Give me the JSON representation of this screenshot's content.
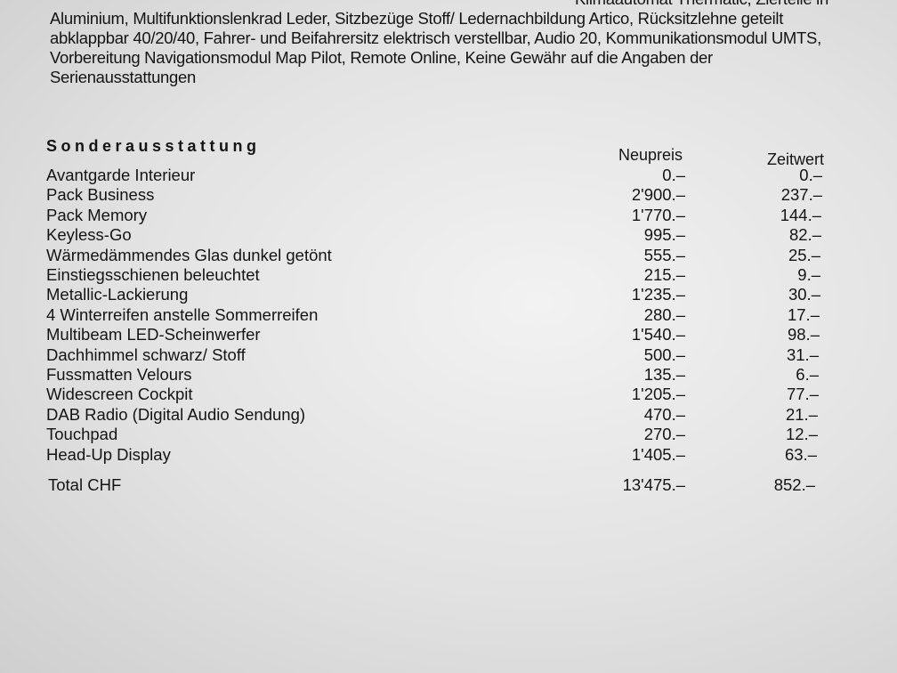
{
  "intro_lines": [
    "Klimaautomat Thermatic, Zierteile in",
    "Aluminium, Multifunktionslenkrad Leder, Sitzbezüge Stoff/ Ledernachbildung Artico, Rücksitzlehne geteilt",
    "abklappbar 40/20/40, Fahrer- und Beifahrersitz elektrisch verstellbar, Audio 20, Kommunikationsmodul UMTS,",
    "Vorbereitung Navigationsmodul Map Pilot, Remote Online, Keine Gewähr auf die Angaben der",
    "Serienausstattungen"
  ],
  "section_title": "Sonderausstattung",
  "columns": {
    "neupreis": "Neupreis",
    "zeitwert": "Zeitwert"
  },
  "items": [
    {
      "label": "Avantgarde Interieur",
      "neupreis": "0.–",
      "zeitwert": "0.–"
    },
    {
      "label": "Pack Business",
      "neupreis": "2'900.–",
      "zeitwert": "237.–"
    },
    {
      "label": "Pack Memory",
      "neupreis": "1'770.–",
      "zeitwert": "144.–"
    },
    {
      "label": "Keyless-Go",
      "neupreis": "995.–",
      "zeitwert": "82.–"
    },
    {
      "label": "Wärmedämmendes Glas dunkel getönt",
      "neupreis": "555.–",
      "zeitwert": "25.–"
    },
    {
      "label": "Einstiegsschienen beleuchtet",
      "neupreis": "215.–",
      "zeitwert": "9.–"
    },
    {
      "label": "Metallic-Lackierung",
      "neupreis": "1'235.–",
      "zeitwert": "30.–"
    },
    {
      "label": "4 Winterreifen anstelle Sommerreifen",
      "neupreis": "280.–",
      "zeitwert": "17.–"
    },
    {
      "label": "Multibeam LED-Scheinwerfer",
      "neupreis": "1'540.–",
      "zeitwert": "98.–"
    },
    {
      "label": "Dachhimmel schwarz/ Stoff",
      "neupreis": "500.–",
      "zeitwert": "31.–"
    },
    {
      "label": "Fussmatten Velours",
      "neupreis": "135.–",
      "zeitwert": "6.–"
    },
    {
      "label": "Widescreen Cockpit",
      "neupreis": "1'205.–",
      "zeitwert": "77.–"
    },
    {
      "label": "DAB Radio (Digital Audio Sendung)",
      "neupreis": "470.–",
      "zeitwert": "21.–"
    },
    {
      "label": "Touchpad",
      "neupreis": "270.–",
      "zeitwert": "12.–"
    },
    {
      "label": "Head-Up Display",
      "neupreis": "1'405.–",
      "zeitwert": "63.–"
    }
  ],
  "total": {
    "label": "Total CHF",
    "neupreis": "13'475.–",
    "zeitwert": "852.–"
  }
}
